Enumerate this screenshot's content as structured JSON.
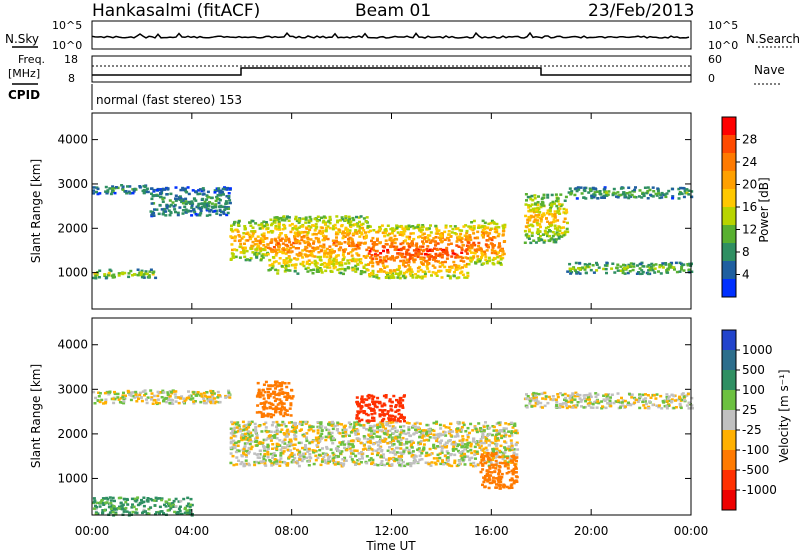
{
  "header": {
    "station": "Hankasalmi (fitACF)",
    "beam": "Beam 01",
    "date": "23/Feb/2013"
  },
  "top_panels": {
    "nsky_label": "N.Sky",
    "nsearch_label": "N.Search",
    "freq_label_1": "Freq.",
    "freq_label_2": "[MHz]",
    "nave_label": "Nave",
    "cpid_label": "CPID",
    "cpid_text": "normal (fast stereo) 153",
    "noise_ticks_left": [
      "10^5",
      "10^0"
    ],
    "noise_ticks_right": [
      "10^5",
      "10^0"
    ],
    "freq_ticks": [
      "18",
      "8"
    ],
    "nave_ticks": [
      "60",
      "0"
    ]
  },
  "power_colorbar": {
    "label": "Power [dB]",
    "ticks": [
      "28",
      "24",
      "20",
      "16",
      "12",
      "8",
      "4"
    ],
    "colors": [
      "#ff0000",
      "#ff4a00",
      "#ff7a00",
      "#ffa000",
      "#ffc800",
      "#b8d400",
      "#58b030",
      "#2f8f62",
      "#1f5fa0",
      "#0030ff"
    ]
  },
  "velocity_colorbar": {
    "label": "Velocity [m s⁻¹]",
    "ticks": [
      "1000",
      "500",
      "100",
      "25",
      "-25",
      "-100",
      "-500",
      "-1000"
    ],
    "colors": [
      "#2244cc",
      "#2c6e8c",
      "#2f8f62",
      "#6cc040",
      "#c0c0c0",
      "#ffb000",
      "#ff7a00",
      "#ff3000",
      "#ee0000"
    ]
  },
  "chart_data": [
    {
      "type": "heatmap",
      "name": "Power",
      "xlabel": "",
      "ylabel": "Slant Range [km]",
      "x_ticks": [
        "00:00",
        "04:00",
        "08:00",
        "12:00",
        "16:00",
        "20:00",
        "00:00"
      ],
      "y_ticks": [
        "1000",
        "2000",
        "3000",
        "4000"
      ],
      "xlim": [
        0,
        24
      ],
      "ylim": [
        180,
        4600
      ],
      "scatter_bands": [
        {
          "from_h": 0.0,
          "to_h": 2.3,
          "range_km": [
            2800,
            3000
          ],
          "power_db": 8
        },
        {
          "from_h": 2.3,
          "to_h": 5.5,
          "range_km": [
            2300,
            2950
          ],
          "power_db": 8
        },
        {
          "from_h": 5.5,
          "to_h": 7.0,
          "range_km": [
            1300,
            2200
          ],
          "power_db": 20
        },
        {
          "from_h": 7.0,
          "to_h": 11.0,
          "range_km": [
            1000,
            2300
          ],
          "power_db": 22
        },
        {
          "from_h": 11.0,
          "to_h": 15.0,
          "range_km": [
            900,
            2100
          ],
          "power_db": 26
        },
        {
          "from_h": 15.0,
          "to_h": 16.5,
          "range_km": [
            1200,
            2200
          ],
          "power_db": 24
        },
        {
          "from_h": 17.3,
          "to_h": 19.0,
          "range_km": [
            1700,
            2800
          ],
          "power_db": 18
        },
        {
          "from_h": 19.0,
          "to_h": 24.0,
          "range_km": [
            2700,
            2950
          ],
          "power_db": 10
        },
        {
          "from_h": 0.0,
          "to_h": 2.5,
          "range_km": [
            900,
            1100
          ],
          "power_db": 14
        },
        {
          "from_h": 19.0,
          "to_h": 24.0,
          "range_km": [
            1000,
            1250
          ],
          "power_db": 12
        }
      ]
    },
    {
      "type": "heatmap",
      "name": "Velocity",
      "xlabel": "Time UT",
      "ylabel": "Slant Range [km]",
      "x_ticks": [
        "00:00",
        "04:00",
        "08:00",
        "12:00",
        "16:00",
        "20:00",
        "00:00"
      ],
      "y_ticks": [
        "1000",
        "2000",
        "3000",
        "4000"
      ],
      "xlim": [
        0,
        24
      ],
      "ylim": [
        180,
        4600
      ],
      "scatter_bands": [
        {
          "from_h": 0.0,
          "to_h": 5.5,
          "range_km": [
            2700,
            3000
          ],
          "velocity": 0
        },
        {
          "from_h": 5.5,
          "to_h": 17.0,
          "range_km": [
            1300,
            2300
          ],
          "velocity": 0
        },
        {
          "from_h": 6.5,
          "to_h": 8.0,
          "range_km": [
            2400,
            3200
          ],
          "velocity": -300
        },
        {
          "from_h": 10.5,
          "to_h": 12.5,
          "range_km": [
            2300,
            2900
          ],
          "velocity": -600
        },
        {
          "from_h": 15.5,
          "to_h": 17.0,
          "range_km": [
            800,
            1600
          ],
          "velocity": -400
        },
        {
          "from_h": 17.3,
          "to_h": 24.0,
          "range_km": [
            2600,
            2950
          ],
          "velocity": 0
        },
        {
          "from_h": 0.0,
          "to_h": 4.0,
          "range_km": [
            200,
            600
          ],
          "velocity": 80
        }
      ]
    }
  ]
}
